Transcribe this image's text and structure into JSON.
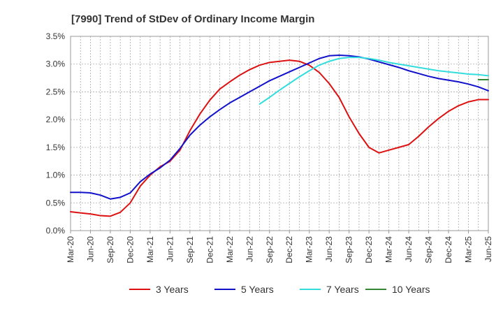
{
  "chart_data": {
    "type": "line",
    "title": "[7990]  Trend of StDev of Ordinary Income Margin",
    "xlabel": "",
    "ylabel": "",
    "x_tick_labels": [
      "Mar-20",
      "Jun-20",
      "Sep-20",
      "Dec-20",
      "Mar-21",
      "Jun-21",
      "Sep-21",
      "Dec-21",
      "Mar-22",
      "Jun-22",
      "Sep-22",
      "Dec-22",
      "Mar-23",
      "Jun-23",
      "Sep-23",
      "Dec-23",
      "Mar-24",
      "Jun-24",
      "Sep-24",
      "Dec-24",
      "Mar-25",
      "Jun-25"
    ],
    "y_tick_labels": [
      "0.0%",
      "0.5%",
      "1.0%",
      "1.5%",
      "2.0%",
      "2.5%",
      "3.0%",
      "3.5%"
    ],
    "ylim": [
      0,
      3.5
    ],
    "y_unit": "%",
    "grid": true,
    "legend_position": "bottom",
    "series": [
      {
        "name": "3 Years",
        "color": "#dd1111",
        "values": [
          0.34,
          0.32,
          0.3,
          0.27,
          0.26,
          0.33,
          0.5,
          0.8,
          1.0,
          1.15,
          1.25,
          1.45,
          1.8,
          2.1,
          2.35,
          2.55,
          2.68,
          2.8,
          2.9,
          2.98,
          3.03,
          3.05,
          3.07,
          3.05,
          2.98,
          2.85,
          2.65,
          2.4,
          2.05,
          1.75,
          1.5,
          1.4,
          1.45,
          1.5,
          1.55,
          1.7,
          1.87,
          2.02,
          2.15,
          2.25,
          2.32,
          2.36,
          2.36
        ]
      },
      {
        "name": "5 Years",
        "color": "#1111cc",
        "values": [
          0.69,
          0.69,
          0.68,
          0.64,
          0.57,
          0.6,
          0.68,
          0.88,
          1.02,
          1.13,
          1.27,
          1.48,
          1.72,
          1.9,
          2.05,
          2.18,
          2.3,
          2.4,
          2.5,
          2.6,
          2.7,
          2.78,
          2.86,
          2.94,
          3.02,
          3.1,
          3.15,
          3.16,
          3.15,
          3.13,
          3.09,
          3.04,
          2.99,
          2.94,
          2.88,
          2.83,
          2.78,
          2.74,
          2.71,
          2.68,
          2.64,
          2.59,
          2.52
        ]
      },
      {
        "name": "7 Years",
        "color": "#33dddd",
        "values": [
          null,
          null,
          null,
          null,
          null,
          null,
          null,
          null,
          null,
          null,
          null,
          null,
          null,
          null,
          null,
          null,
          null,
          null,
          null,
          2.28,
          2.4,
          2.53,
          2.65,
          2.77,
          2.88,
          2.98,
          3.05,
          3.1,
          3.12,
          3.12,
          3.1,
          3.07,
          3.03,
          3.0,
          2.97,
          2.94,
          2.91,
          2.88,
          2.86,
          2.84,
          2.82,
          2.81,
          2.79
        ]
      },
      {
        "name": "10 Years",
        "color": "#338833",
        "values": [
          null,
          null,
          null,
          null,
          null,
          null,
          null,
          null,
          null,
          null,
          null,
          null,
          null,
          null,
          null,
          null,
          null,
          null,
          null,
          null,
          null,
          null,
          null,
          null,
          null,
          null,
          null,
          null,
          null,
          null,
          null,
          null,
          null,
          null,
          null,
          null,
          null,
          null,
          null,
          null,
          null,
          2.72,
          2.72
        ]
      }
    ]
  }
}
